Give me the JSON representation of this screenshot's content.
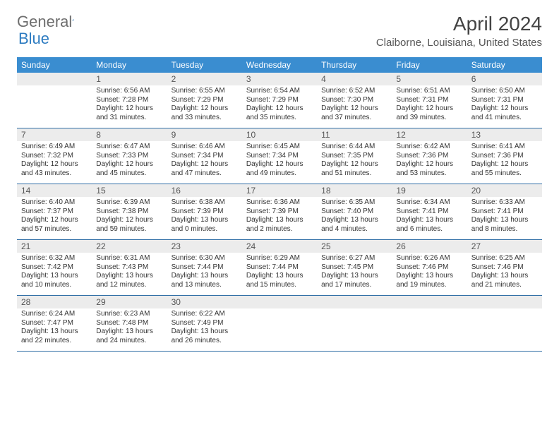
{
  "logo": {
    "general": "General",
    "blue": "Blue"
  },
  "title": "April 2024",
  "location": "Claiborne, Louisiana, United States",
  "dayNames": [
    "Sunday",
    "Monday",
    "Tuesday",
    "Wednesday",
    "Thursday",
    "Friday",
    "Saturday"
  ],
  "colors": {
    "headerBg": "#3a8dd0",
    "headerText": "#ffffff",
    "dayNumBg": "#ececec",
    "weekBorder": "#2e6da5",
    "logoBlue": "#2e7cc1",
    "logoGray": "#6e6e6e"
  },
  "weeks": [
    [
      {
        "n": "",
        "sr": "",
        "ss": "",
        "dl1": "",
        "dl2": ""
      },
      {
        "n": "1",
        "sr": "Sunrise: 6:56 AM",
        "ss": "Sunset: 7:28 PM",
        "dl1": "Daylight: 12 hours",
        "dl2": "and 31 minutes."
      },
      {
        "n": "2",
        "sr": "Sunrise: 6:55 AM",
        "ss": "Sunset: 7:29 PM",
        "dl1": "Daylight: 12 hours",
        "dl2": "and 33 minutes."
      },
      {
        "n": "3",
        "sr": "Sunrise: 6:54 AM",
        "ss": "Sunset: 7:29 PM",
        "dl1": "Daylight: 12 hours",
        "dl2": "and 35 minutes."
      },
      {
        "n": "4",
        "sr": "Sunrise: 6:52 AM",
        "ss": "Sunset: 7:30 PM",
        "dl1": "Daylight: 12 hours",
        "dl2": "and 37 minutes."
      },
      {
        "n": "5",
        "sr": "Sunrise: 6:51 AM",
        "ss": "Sunset: 7:31 PM",
        "dl1": "Daylight: 12 hours",
        "dl2": "and 39 minutes."
      },
      {
        "n": "6",
        "sr": "Sunrise: 6:50 AM",
        "ss": "Sunset: 7:31 PM",
        "dl1": "Daylight: 12 hours",
        "dl2": "and 41 minutes."
      }
    ],
    [
      {
        "n": "7",
        "sr": "Sunrise: 6:49 AM",
        "ss": "Sunset: 7:32 PM",
        "dl1": "Daylight: 12 hours",
        "dl2": "and 43 minutes."
      },
      {
        "n": "8",
        "sr": "Sunrise: 6:47 AM",
        "ss": "Sunset: 7:33 PM",
        "dl1": "Daylight: 12 hours",
        "dl2": "and 45 minutes."
      },
      {
        "n": "9",
        "sr": "Sunrise: 6:46 AM",
        "ss": "Sunset: 7:34 PM",
        "dl1": "Daylight: 12 hours",
        "dl2": "and 47 minutes."
      },
      {
        "n": "10",
        "sr": "Sunrise: 6:45 AM",
        "ss": "Sunset: 7:34 PM",
        "dl1": "Daylight: 12 hours",
        "dl2": "and 49 minutes."
      },
      {
        "n": "11",
        "sr": "Sunrise: 6:44 AM",
        "ss": "Sunset: 7:35 PM",
        "dl1": "Daylight: 12 hours",
        "dl2": "and 51 minutes."
      },
      {
        "n": "12",
        "sr": "Sunrise: 6:42 AM",
        "ss": "Sunset: 7:36 PM",
        "dl1": "Daylight: 12 hours",
        "dl2": "and 53 minutes."
      },
      {
        "n": "13",
        "sr": "Sunrise: 6:41 AM",
        "ss": "Sunset: 7:36 PM",
        "dl1": "Daylight: 12 hours",
        "dl2": "and 55 minutes."
      }
    ],
    [
      {
        "n": "14",
        "sr": "Sunrise: 6:40 AM",
        "ss": "Sunset: 7:37 PM",
        "dl1": "Daylight: 12 hours",
        "dl2": "and 57 minutes."
      },
      {
        "n": "15",
        "sr": "Sunrise: 6:39 AM",
        "ss": "Sunset: 7:38 PM",
        "dl1": "Daylight: 12 hours",
        "dl2": "and 59 minutes."
      },
      {
        "n": "16",
        "sr": "Sunrise: 6:38 AM",
        "ss": "Sunset: 7:39 PM",
        "dl1": "Daylight: 13 hours",
        "dl2": "and 0 minutes."
      },
      {
        "n": "17",
        "sr": "Sunrise: 6:36 AM",
        "ss": "Sunset: 7:39 PM",
        "dl1": "Daylight: 13 hours",
        "dl2": "and 2 minutes."
      },
      {
        "n": "18",
        "sr": "Sunrise: 6:35 AM",
        "ss": "Sunset: 7:40 PM",
        "dl1": "Daylight: 13 hours",
        "dl2": "and 4 minutes."
      },
      {
        "n": "19",
        "sr": "Sunrise: 6:34 AM",
        "ss": "Sunset: 7:41 PM",
        "dl1": "Daylight: 13 hours",
        "dl2": "and 6 minutes."
      },
      {
        "n": "20",
        "sr": "Sunrise: 6:33 AM",
        "ss": "Sunset: 7:41 PM",
        "dl1": "Daylight: 13 hours",
        "dl2": "and 8 minutes."
      }
    ],
    [
      {
        "n": "21",
        "sr": "Sunrise: 6:32 AM",
        "ss": "Sunset: 7:42 PM",
        "dl1": "Daylight: 13 hours",
        "dl2": "and 10 minutes."
      },
      {
        "n": "22",
        "sr": "Sunrise: 6:31 AM",
        "ss": "Sunset: 7:43 PM",
        "dl1": "Daylight: 13 hours",
        "dl2": "and 12 minutes."
      },
      {
        "n": "23",
        "sr": "Sunrise: 6:30 AM",
        "ss": "Sunset: 7:44 PM",
        "dl1": "Daylight: 13 hours",
        "dl2": "and 13 minutes."
      },
      {
        "n": "24",
        "sr": "Sunrise: 6:29 AM",
        "ss": "Sunset: 7:44 PM",
        "dl1": "Daylight: 13 hours",
        "dl2": "and 15 minutes."
      },
      {
        "n": "25",
        "sr": "Sunrise: 6:27 AM",
        "ss": "Sunset: 7:45 PM",
        "dl1": "Daylight: 13 hours",
        "dl2": "and 17 minutes."
      },
      {
        "n": "26",
        "sr": "Sunrise: 6:26 AM",
        "ss": "Sunset: 7:46 PM",
        "dl1": "Daylight: 13 hours",
        "dl2": "and 19 minutes."
      },
      {
        "n": "27",
        "sr": "Sunrise: 6:25 AM",
        "ss": "Sunset: 7:46 PM",
        "dl1": "Daylight: 13 hours",
        "dl2": "and 21 minutes."
      }
    ],
    [
      {
        "n": "28",
        "sr": "Sunrise: 6:24 AM",
        "ss": "Sunset: 7:47 PM",
        "dl1": "Daylight: 13 hours",
        "dl2": "and 22 minutes."
      },
      {
        "n": "29",
        "sr": "Sunrise: 6:23 AM",
        "ss": "Sunset: 7:48 PM",
        "dl1": "Daylight: 13 hours",
        "dl2": "and 24 minutes."
      },
      {
        "n": "30",
        "sr": "Sunrise: 6:22 AM",
        "ss": "Sunset: 7:49 PM",
        "dl1": "Daylight: 13 hours",
        "dl2": "and 26 minutes."
      },
      {
        "n": "",
        "sr": "",
        "ss": "",
        "dl1": "",
        "dl2": ""
      },
      {
        "n": "",
        "sr": "",
        "ss": "",
        "dl1": "",
        "dl2": ""
      },
      {
        "n": "",
        "sr": "",
        "ss": "",
        "dl1": "",
        "dl2": ""
      },
      {
        "n": "",
        "sr": "",
        "ss": "",
        "dl1": "",
        "dl2": ""
      }
    ]
  ]
}
